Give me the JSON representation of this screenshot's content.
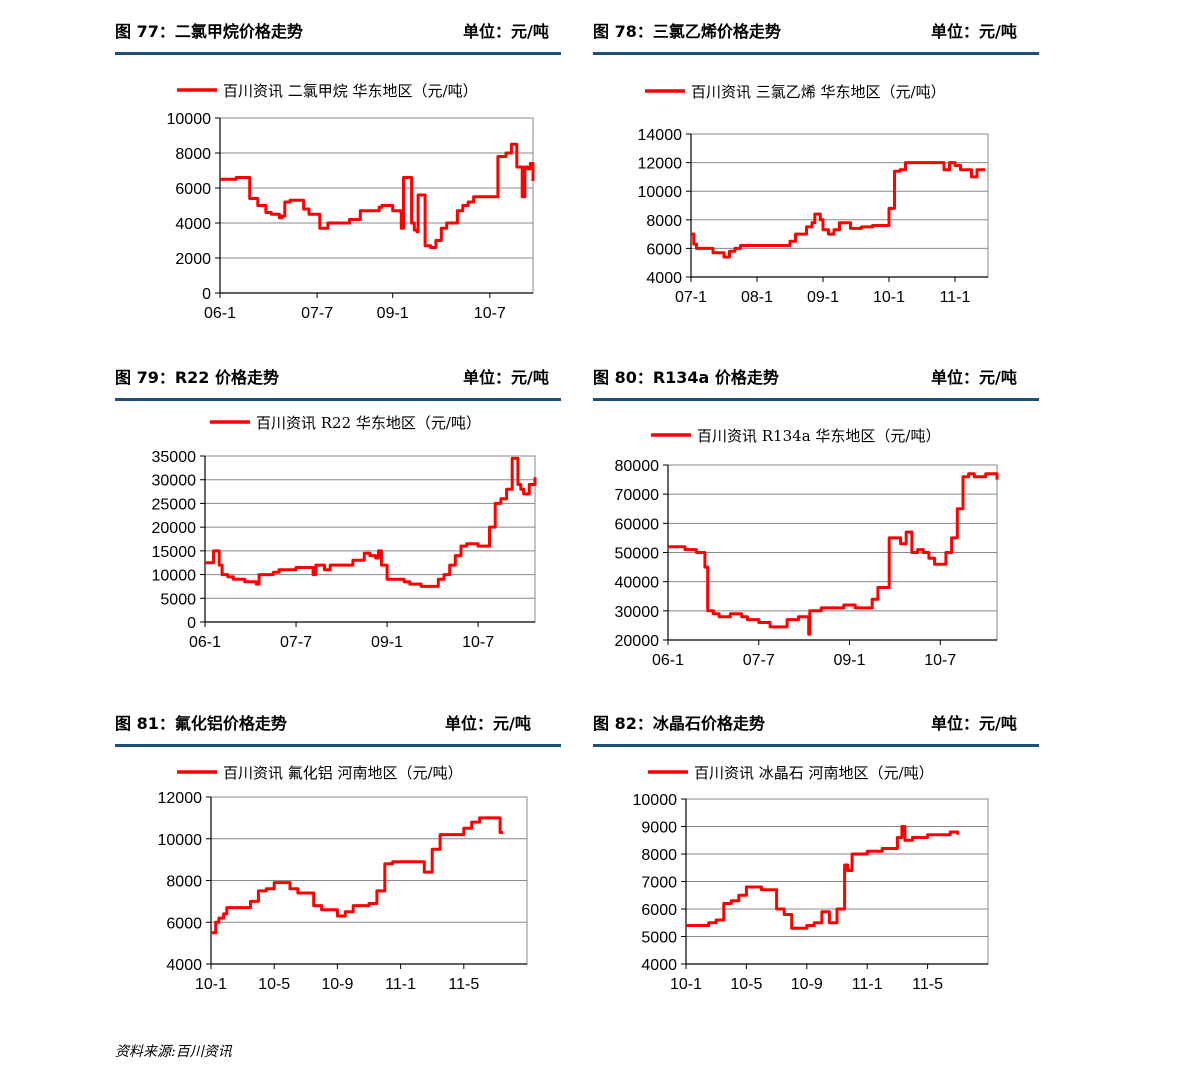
{
  "footer": "资料来源:百川资讯",
  "panels": [
    {
      "title": "图 77：二氯甲烷价格走势",
      "unit": "单位：元/吨",
      "chart_data": {
        "type": "line",
        "legend": "百川资讯  二氯甲烷  华东地区（元/吨）",
        "color": "#ff0000",
        "ylim": [
          0,
          10000
        ],
        "yticks": [
          0,
          2000,
          4000,
          6000,
          8000,
          10000
        ],
        "xlim": [
          0,
          58
        ],
        "xticks": [
          {
            "v": 0,
            "label": "06-1"
          },
          {
            "v": 18,
            "label": "07-7"
          },
          {
            "v": 32,
            "label": "09-1"
          },
          {
            "v": 50,
            "label": "10-7"
          }
        ],
        "series": [
          {
            "x": [
              0,
              3,
              3.5,
              5.5,
              6.5,
              7,
              8.5,
              9.5,
              10.5,
              11,
              11.5,
              12,
              13,
              15,
              15.5,
              16.5,
              18.5,
              19,
              20,
              22,
              23,
              24,
              24.5,
              26,
              28,
              29.5,
              30,
              30.5,
              31,
              32,
              33.5,
              33.6,
              34,
              35.5,
              36,
              36.5,
              36.7,
              37.5,
              38,
              39,
              40,
              41,
              42,
              44,
              45,
              46,
              47,
              48,
              51,
              51.5,
              53,
              54,
              55,
              56,
              56.5,
              57,
              57.5,
              58
            ],
            "y": [
              6500,
              6600,
              6600,
              5400,
              5400,
              5000,
              4600,
              4500,
              4500,
              4300,
              4400,
              5200,
              5300,
              5300,
              4800,
              4500,
              3700,
              3700,
              4000,
              4000,
              4000,
              4200,
              4200,
              4700,
              4700,
              4900,
              5000,
              5000,
              5000,
              4700,
              4600,
              3700,
              6600,
              4000,
              3600,
              3500,
              5600,
              5600,
              2700,
              2600,
              3000,
              3700,
              4000,
              4700,
              5000,
              5200,
              5500,
              5500,
              5500,
              7800,
              8000,
              8500,
              7200,
              5500,
              7200,
              7100,
              7400,
              6400
            ]
          }
        ]
      }
    },
    {
      "title": "图 78：三氯乙烯价格走势",
      "unit": "单位：元/吨",
      "chart_data": {
        "type": "line",
        "legend": "百川资讯  三氯乙烯  华东地区（元/吨）",
        "color": "#ff0000",
        "ylim": [
          4000,
          14000
        ],
        "yticks": [
          4000,
          6000,
          8000,
          10000,
          12000,
          14000
        ],
        "xlim": [
          0,
          54
        ],
        "xticks": [
          {
            "v": 0,
            "label": "07-1"
          },
          {
            "v": 12,
            "label": "08-1"
          },
          {
            "v": 24,
            "label": "09-1"
          },
          {
            "v": 36,
            "label": "10-1"
          },
          {
            "v": 48,
            "label": "11-1"
          }
        ],
        "series": [
          {
            "x": [
              0,
              0.5,
              1,
              3,
              4,
              6,
              7,
              8,
              9,
              10,
              14,
              16,
              18,
              19,
              21,
              22,
              22.5,
              23.5,
              24,
              25,
              26,
              27,
              29,
              31,
              33,
              35,
              36,
              37,
              38,
              39,
              40,
              41,
              42,
              45,
              46,
              47,
              48,
              49,
              51,
              52,
              53.5
            ],
            "y": [
              7000,
              6300,
              6000,
              6000,
              5700,
              5400,
              5800,
              6000,
              6200,
              6200,
              6200,
              6200,
              6500,
              7000,
              7500,
              7800,
              8400,
              8000,
              7300,
              7000,
              7300,
              7800,
              7400,
              7500,
              7600,
              7600,
              8800,
              11400,
              11500,
              12000,
              12000,
              12000,
              12000,
              12000,
              11500,
              12000,
              11800,
              11500,
              11000,
              11500,
              11500
            ]
          }
        ]
      }
    },
    {
      "title": "图 79：R22 价格走势",
      "unit": "单位：元/吨",
      "chart_data": {
        "type": "line",
        "legend": "百川资讯  R22  华东地区（元/吨）",
        "color": "#ff0000",
        "ylim": [
          0,
          35000
        ],
        "yticks": [
          0,
          5000,
          10000,
          15000,
          20000,
          25000,
          30000,
          35000
        ],
        "xlim": [
          0,
          58
        ],
        "xticks": [
          {
            "v": 0,
            "label": "06-1"
          },
          {
            "v": 16,
            "label": "07-7"
          },
          {
            "v": 32,
            "label": "09-1"
          },
          {
            "v": 48,
            "label": "10-7"
          }
        ],
        "series": [
          {
            "x": [
              0,
              1.5,
              2.5,
              3,
              4,
              5,
              7,
              9,
              9.5,
              12,
              13,
              16,
              18,
              19,
              19.5,
              21,
              22,
              24,
              26,
              28,
              29,
              30,
              30.5,
              31,
              32,
              34,
              35,
              36,
              37,
              38,
              40,
              41,
              42,
              43,
              44,
              45,
              46,
              48,
              49,
              50,
              51,
              52,
              53,
              54,
              55,
              55.5,
              56,
              57,
              58
            ],
            "y": [
              12500,
              15000,
              12000,
              10000,
              9500,
              9000,
              8500,
              8000,
              10000,
              10500,
              11000,
              11500,
              11500,
              10000,
              12000,
              11000,
              12000,
              12000,
              13000,
              14500,
              14000,
              13500,
              15000,
              12000,
              9000,
              9000,
              8500,
              8000,
              8000,
              7500,
              7500,
              9000,
              10000,
              12000,
              14000,
              16000,
              16500,
              16000,
              16000,
              20000,
              25000,
              26000,
              28000,
              34500,
              29000,
              28000,
              27000,
              29000,
              30500
            ]
          }
        ]
      }
    },
    {
      "title": "图 80：R134a 价格走势",
      "unit": "单位：元/吨",
      "chart_data": {
        "type": "line",
        "legend": "百川资讯  R134a  华东地区（元/吨）",
        "color": "#ff0000",
        "ylim": [
          20000,
          80000
        ],
        "yticks": [
          20000,
          30000,
          40000,
          50000,
          60000,
          70000,
          80000
        ],
        "xlim": [
          0,
          58
        ],
        "xticks": [
          {
            "v": 0,
            "label": "06-1"
          },
          {
            "v": 16,
            "label": "07-7"
          },
          {
            "v": 32,
            "label": "09-1"
          },
          {
            "v": 48,
            "label": "10-7"
          }
        ],
        "series": [
          {
            "x": [
              0,
              3,
              5,
              6.5,
              7,
              8,
              9,
              11,
              12,
              13,
              14,
              16,
              18,
              20,
              21,
              23,
              24,
              24.8,
              25,
              26,
              27,
              29,
              31,
              33,
              36,
              37,
              39,
              41,
              42,
              43,
              44,
              45,
              46,
              47,
              48,
              49,
              50,
              51,
              52,
              53,
              54,
              56,
              57,
              58
            ],
            "y": [
              52000,
              51000,
              50000,
              45000,
              30000,
              29000,
              28000,
              29000,
              29000,
              28000,
              27000,
              26000,
              24500,
              24500,
              27000,
              28000,
              28000,
              22000,
              30000,
              30000,
              31000,
              31000,
              32000,
              31000,
              34000,
              38000,
              55000,
              53000,
              57000,
              50000,
              51000,
              50000,
              48000,
              46000,
              46000,
              50000,
              55000,
              65000,
              76000,
              77000,
              76000,
              77000,
              77000,
              75000
            ]
          }
        ]
      }
    },
    {
      "title": "图 81：氟化铝价格走势",
      "unit": "单位：元/吨",
      "chart_data": {
        "type": "line",
        "legend": "百川资讯  氟化铝  河南地区（元/吨）",
        "color": "#ff0000",
        "ylim": [
          4000,
          12000
        ],
        "yticks": [
          4000,
          6000,
          8000,
          10000,
          12000
        ],
        "xlim": [
          0,
          20
        ],
        "xticks": [
          {
            "v": 0,
            "label": "10-1"
          },
          {
            "v": 4,
            "label": "10-5"
          },
          {
            "v": 8,
            "label": "10-9"
          },
          {
            "v": 12,
            "label": "11-1"
          },
          {
            "v": 16,
            "label": "11-5"
          }
        ],
        "series": [
          {
            "x": [
              0,
              0.3,
              0.5,
              0.8,
              1,
              2,
              2.5,
              3,
              3.5,
              4,
              4.5,
              5,
              5.5,
              6,
              6.5,
              7,
              8,
              8.5,
              9,
              10,
              10.5,
              11,
              11.5,
              12,
              13,
              13.5,
              14,
              14.5,
              15,
              16,
              16.5,
              17,
              17.5,
              18,
              18.3,
              18.5
            ],
            "y": [
              5500,
              6000,
              6200,
              6400,
              6700,
              6700,
              7000,
              7500,
              7600,
              7900,
              7900,
              7600,
              7400,
              7400,
              6800,
              6600,
              6300,
              6500,
              6800,
              6900,
              7500,
              8800,
              8900,
              8900,
              8900,
              8400,
              9500,
              10200,
              10200,
              10500,
              10800,
              11000,
              11000,
              11000,
              10300,
              10300
            ]
          }
        ]
      }
    },
    {
      "title": "图 82：冰晶石价格走势",
      "unit": "单位：元/吨",
      "chart_data": {
        "type": "line",
        "legend": "百川资讯  冰晶石  河南地区（元/吨）",
        "color": "#ff0000",
        "ylim": [
          4000,
          10000
        ],
        "yticks": [
          4000,
          5000,
          6000,
          7000,
          8000,
          9000,
          10000
        ],
        "xlim": [
          0,
          20
        ],
        "xticks": [
          {
            "v": 0,
            "label": "10-1"
          },
          {
            "v": 4,
            "label": "10-5"
          },
          {
            "v": 8,
            "label": "10-9"
          },
          {
            "v": 12,
            "label": "11-1"
          },
          {
            "v": 16,
            "label": "11-5"
          }
        ],
        "series": [
          {
            "x": [
              0,
              1,
              1.5,
              2,
              2.5,
              3,
              3.5,
              4,
              5,
              6,
              6.5,
              7,
              8,
              8.5,
              9,
              9.5,
              10,
              10.5,
              10.7,
              11,
              11.5,
              12,
              13,
              14,
              14.3,
              14.5,
              15,
              16,
              17,
              17.5,
              18
            ],
            "y": [
              5400,
              5400,
              5500,
              5600,
              6200,
              6300,
              6500,
              6800,
              6700,
              6000,
              5800,
              5300,
              5400,
              5500,
              5900,
              5500,
              6000,
              7600,
              7400,
              8000,
              8000,
              8100,
              8200,
              8600,
              9000,
              8500,
              8600,
              8700,
              8700,
              8800,
              8700
            ]
          }
        ]
      }
    }
  ]
}
